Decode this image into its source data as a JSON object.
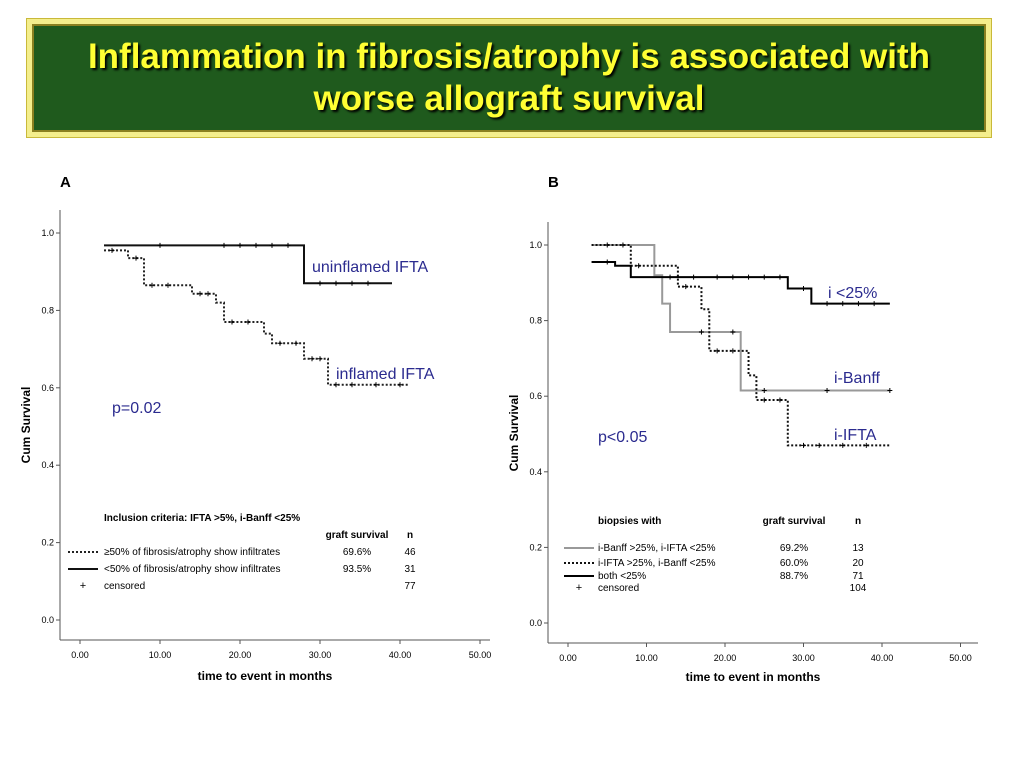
{
  "slide": {
    "title": "Inflammation in fibrosis/atrophy is associated with worse allograft survival"
  },
  "colors": {
    "banner_bg": "#1f5a1d",
    "banner_border": "#f4ee8c",
    "title": "#ffff33",
    "annotation": "#2b2b8f"
  },
  "chart_data": [
    {
      "panel": "A",
      "type": "line",
      "subtype": "kaplan-meier",
      "xlabel": "time to event in months",
      "ylabel": "Cum Survival",
      "xlim": [
        0,
        50
      ],
      "ylim": [
        0,
        1.0
      ],
      "xticks": [
        "0.00",
        "10.00",
        "20.00",
        "30.00",
        "40.00",
        "50.00"
      ],
      "yticks": [
        "0.0",
        "0.2",
        "0.4",
        "0.6",
        "0.8",
        "1.0"
      ],
      "annotations": {
        "p_value": "p=0.02",
        "label_1": "uninflamed IFTA",
        "label_2": "inflamed IFTA"
      },
      "legend": {
        "title": "Inclusion criteria: IFTA >5%, i-Banff <25%",
        "col_survival": "graft survival",
        "col_n": "n",
        "rows": [
          {
            "label": "≥50% of fibrosis/atrophy show infiltrates",
            "survival": "69.6%",
            "n": "46"
          },
          {
            "label": "<50% of fibrosis/atrophy show infiltrates",
            "survival": "93.5%",
            "n": "31"
          }
        ],
        "censored_symbol": "+",
        "censored_label": "censored",
        "censored_n": "77"
      },
      "series": [
        {
          "style": "dotted",
          "color": "#222222",
          "steps": [
            [
              3,
              0.955
            ],
            [
              6,
              0.935
            ],
            [
              8,
              0.865
            ],
            [
              14,
              0.843
            ],
            [
              17,
              0.82
            ],
            [
              18,
              0.77
            ],
            [
              23,
              0.74
            ],
            [
              24,
              0.715
            ],
            [
              28,
              0.675
            ],
            [
              31,
              0.608
            ],
            [
              41,
              0.608
            ]
          ],
          "censored": [
            [
              4,
              0.955
            ],
            [
              7,
              0.935
            ],
            [
              9,
              0.865
            ],
            [
              11,
              0.865
            ],
            [
              15,
              0.843
            ],
            [
              16,
              0.843
            ],
            [
              19,
              0.77
            ],
            [
              21,
              0.77
            ],
            [
              25,
              0.715
            ],
            [
              27,
              0.715
            ],
            [
              29,
              0.675
            ],
            [
              30,
              0.675
            ],
            [
              32,
              0.608
            ],
            [
              34,
              0.608
            ],
            [
              37,
              0.608
            ],
            [
              40,
              0.608
            ]
          ]
        },
        {
          "style": "solid",
          "color": "#111111",
          "steps": [
            [
              3,
              0.968
            ],
            [
              28,
              0.87
            ],
            [
              39,
              0.87
            ]
          ],
          "censored": [
            [
              10,
              0.968
            ],
            [
              18,
              0.968
            ],
            [
              20,
              0.968
            ],
            [
              22,
              0.968
            ],
            [
              24,
              0.968
            ],
            [
              26,
              0.968
            ],
            [
              30,
              0.87
            ],
            [
              32,
              0.87
            ],
            [
              34,
              0.87
            ],
            [
              36,
              0.87
            ]
          ]
        }
      ]
    },
    {
      "panel": "B",
      "type": "line",
      "subtype": "kaplan-meier",
      "xlabel": "time to event in months",
      "ylabel": "Cum Survival",
      "xlim": [
        0,
        50
      ],
      "ylim": [
        0,
        1.0
      ],
      "xticks": [
        "0.00",
        "10.00",
        "20.00",
        "30.00",
        "40.00",
        "50.00"
      ],
      "yticks": [
        "0.0",
        "0.2",
        "0.4",
        "0.6",
        "0.8",
        "1.0"
      ],
      "annotations": {
        "p_value": "p<0.05",
        "label_1": "i <25%",
        "label_2": "i-Banff",
        "label_3": "i-IFTA"
      },
      "legend": {
        "title": "biopsies with",
        "col_survival": "graft survival",
        "col_n": "n",
        "rows": [
          {
            "label": "i-Banff >25%, i-IFTA <25%",
            "survival": "69.2%",
            "n": "13"
          },
          {
            "label": "i-IFTA >25%, i-Banff <25%",
            "survival": "60.0%",
            "n": "20"
          },
          {
            "label": "both <25%",
            "survival": "88.7%",
            "n": "71"
          }
        ],
        "censored_symbol": "+",
        "censored_label": "censored",
        "censored_n": "104"
      },
      "series": [
        {
          "style": "solid",
          "color": "#999999",
          "steps": [
            [
              3,
              1.0
            ],
            [
              11,
              0.92
            ],
            [
              12,
              0.845
            ],
            [
              13,
              0.77
            ],
            [
              22,
              0.615
            ],
            [
              41,
              0.615
            ]
          ],
          "censored": [
            [
              7,
              1.0
            ],
            [
              17,
              0.77
            ],
            [
              21,
              0.77
            ],
            [
              25,
              0.615
            ],
            [
              33,
              0.615
            ],
            [
              41,
              0.615
            ]
          ]
        },
        {
          "style": "dotted",
          "color": "#111111",
          "steps": [
            [
              3,
              1.0
            ],
            [
              8,
              0.945
            ],
            [
              14,
              0.89
            ],
            [
              17,
              0.83
            ],
            [
              18,
              0.72
            ],
            [
              23,
              0.655
            ],
            [
              24,
              0.59
            ],
            [
              28,
              0.47
            ],
            [
              41,
              0.47
            ]
          ],
          "censored": [
            [
              5,
              1.0
            ],
            [
              9,
              0.945
            ],
            [
              15,
              0.89
            ],
            [
              19,
              0.72
            ],
            [
              21,
              0.72
            ],
            [
              25,
              0.59
            ],
            [
              27,
              0.59
            ],
            [
              30,
              0.47
            ],
            [
              32,
              0.47
            ],
            [
              35,
              0.47
            ],
            [
              38,
              0.47
            ]
          ]
        },
        {
          "style": "solid",
          "color": "#000000",
          "steps": [
            [
              3,
              0.955
            ],
            [
              6,
              0.945
            ],
            [
              8,
              0.915
            ],
            [
              28,
              0.885
            ],
            [
              31,
              0.845
            ],
            [
              41,
              0.845
            ]
          ],
          "censored": [
            [
              5,
              0.955
            ],
            [
              13,
              0.915
            ],
            [
              16,
              0.915
            ],
            [
              19,
              0.915
            ],
            [
              21,
              0.915
            ],
            [
              23,
              0.915
            ],
            [
              25,
              0.915
            ],
            [
              27,
              0.915
            ],
            [
              30,
              0.885
            ],
            [
              33,
              0.845
            ],
            [
              35,
              0.845
            ],
            [
              37,
              0.845
            ],
            [
              39,
              0.845
            ]
          ]
        }
      ]
    }
  ]
}
